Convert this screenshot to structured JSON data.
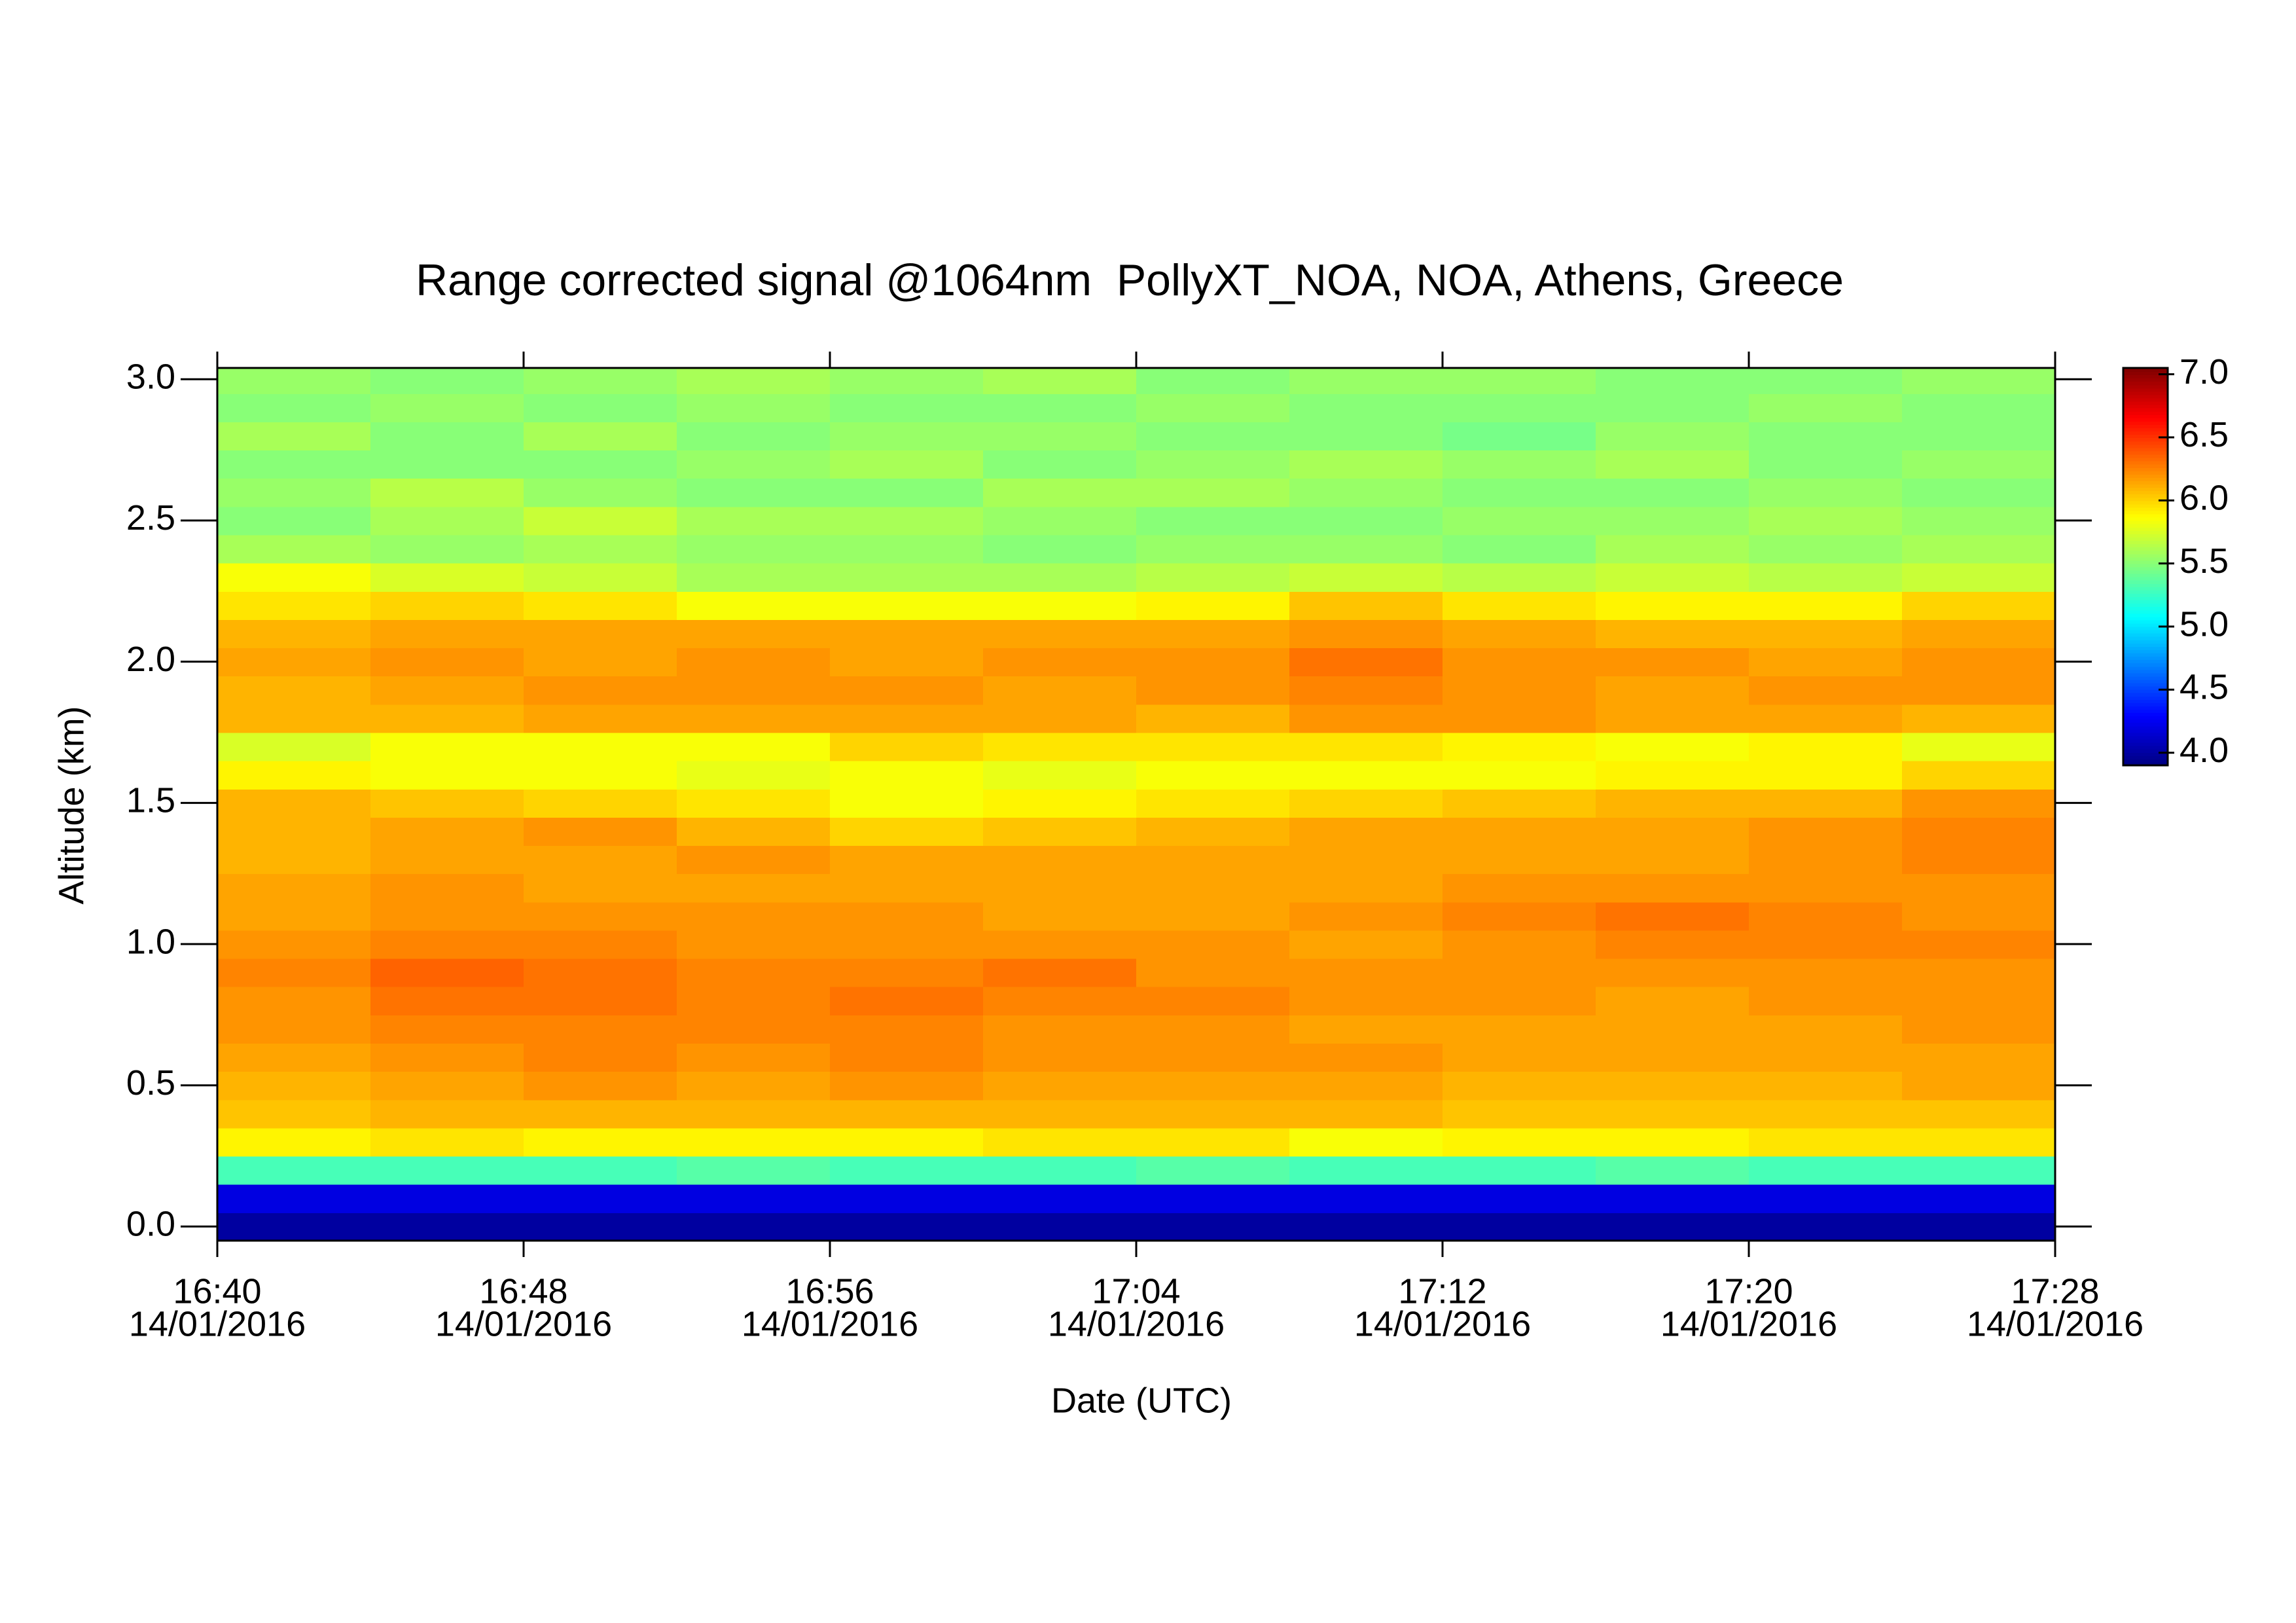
{
  "chart_data": {
    "type": "heatmap",
    "title": "Range corrected signal @1064nm  PollyXT_NOA, NOA, Athens, Greece",
    "xlabel": "Date (UTC)",
    "ylabel": "Altitude (km)",
    "xlim": [
      "16:40",
      "17:28"
    ],
    "xticks": [
      {
        "value": "16:40",
        "label": [
          "16:40",
          "14/01/2016"
        ]
      },
      {
        "value": "16:48",
        "label": [
          "16:48",
          "14/01/2016"
        ]
      },
      {
        "value": "16:56",
        "label": [
          "16:56",
          "14/01/2016"
        ]
      },
      {
        "value": "17:04",
        "label": [
          "17:04",
          "14/01/2016"
        ]
      },
      {
        "value": "17:12",
        "label": [
          "17:12",
          "14/01/2016"
        ]
      },
      {
        "value": "17:20",
        "label": [
          "17:20",
          "14/01/2016"
        ]
      },
      {
        "value": "17:28",
        "label": [
          "17:28",
          "14/01/2016"
        ]
      }
    ],
    "ylim": [
      -0.05,
      3.04
    ],
    "yticks": [
      {
        "value": 0,
        "label": "0.0"
      },
      0.5,
      {
        "value": 1,
        "label": "1.0"
      },
      1.5,
      {
        "value": 2,
        "label": "2.0"
      },
      2.5,
      {
        "value": 3,
        "label": "3.0"
      }
    ],
    "xbins": [
      "16:40",
      "16:44",
      "16:48",
      "16:52",
      "16:56",
      "17:00",
      "17:04",
      "17:08",
      "17:12",
      "17:16",
      "17:20",
      "17:24",
      "17:28"
    ],
    "ybins": [
      -0.05,
      0.05,
      0.15,
      0.25,
      0.35,
      0.45,
      0.55,
      0.65,
      0.75,
      0.85,
      0.95,
      1.05,
      1.15,
      1.25,
      1.35,
      1.45,
      1.55,
      1.65,
      1.75,
      1.85,
      1.95,
      2.05,
      2.15,
      2.25,
      2.35,
      2.45,
      2.55,
      2.65,
      2.75,
      2.85,
      2.95,
      3.05
    ],
    "values": [
      [
        4.0,
        4.2,
        5.3,
        5.9,
        6.05,
        6.1,
        6.15,
        6.2,
        6.2,
        6.25,
        6.2,
        6.15,
        6.15,
        6.1,
        6.1,
        6.1,
        5.9,
        5.75,
        6.1,
        6.1,
        6.15,
        6.1,
        5.95,
        5.85,
        5.6,
        5.5,
        5.55,
        5.5,
        5.6,
        5.5,
        5.55
      ],
      [
        4.0,
        4.2,
        5.3,
        5.95,
        6.1,
        6.15,
        6.2,
        6.25,
        6.3,
        6.35,
        6.25,
        6.2,
        6.2,
        6.15,
        6.15,
        6.05,
        5.85,
        5.85,
        6.1,
        6.15,
        6.2,
        6.15,
        6.0,
        5.75,
        5.55,
        5.6,
        5.65,
        5.5,
        5.5,
        5.55,
        5.5
      ],
      [
        4.0,
        4.2,
        5.3,
        5.9,
        6.1,
        6.2,
        6.25,
        6.25,
        6.3,
        6.3,
        6.25,
        6.2,
        6.15,
        6.15,
        6.2,
        6.0,
        5.85,
        5.85,
        6.15,
        6.2,
        6.15,
        6.15,
        5.95,
        5.7,
        5.6,
        5.7,
        5.55,
        5.5,
        5.6,
        5.5,
        5.55
      ],
      [
        4.0,
        4.2,
        5.35,
        5.9,
        6.1,
        6.15,
        6.2,
        6.25,
        6.25,
        6.25,
        6.2,
        6.2,
        6.15,
        6.2,
        6.1,
        5.95,
        5.8,
        5.85,
        6.15,
        6.2,
        6.2,
        6.15,
        5.85,
        5.6,
        5.55,
        5.6,
        5.5,
        5.55,
        5.5,
        5.55,
        5.6
      ],
      [
        4.0,
        4.2,
        5.3,
        5.9,
        6.1,
        6.2,
        6.25,
        6.25,
        6.3,
        6.25,
        6.2,
        6.2,
        6.15,
        6.15,
        6.0,
        5.85,
        5.85,
        6.0,
        6.15,
        6.2,
        6.15,
        6.15,
        5.85,
        5.6,
        5.55,
        5.6,
        5.5,
        5.6,
        5.55,
        5.5,
        5.55
      ],
      [
        4.0,
        4.2,
        5.3,
        5.95,
        6.1,
        6.15,
        6.2,
        6.2,
        6.25,
        6.3,
        6.2,
        6.15,
        6.15,
        6.15,
        6.05,
        5.9,
        5.8,
        5.95,
        6.15,
        6.15,
        6.2,
        6.15,
        5.85,
        5.6,
        5.5,
        5.55,
        5.6,
        5.5,
        5.55,
        5.5,
        5.6
      ],
      [
        4.0,
        4.2,
        5.35,
        5.95,
        6.1,
        6.15,
        6.2,
        6.2,
        6.25,
        6.2,
        6.2,
        6.15,
        6.15,
        6.15,
        6.1,
        5.95,
        5.85,
        5.95,
        6.1,
        6.2,
        6.2,
        6.15,
        5.9,
        5.65,
        5.55,
        5.5,
        5.6,
        5.55,
        5.5,
        5.55,
        5.5
      ],
      [
        4.0,
        4.2,
        5.3,
        5.85,
        6.1,
        6.15,
        6.2,
        6.15,
        6.2,
        6.2,
        6.15,
        6.2,
        6.15,
        6.15,
        6.15,
        6.0,
        5.85,
        5.95,
        6.2,
        6.25,
        6.3,
        6.2,
        6.05,
        5.7,
        5.55,
        5.5,
        5.55,
        5.6,
        5.5,
        5.5,
        5.55
      ],
      [
        4.0,
        4.2,
        5.3,
        5.9,
        6.05,
        6.1,
        6.15,
        6.15,
        6.2,
        6.2,
        6.2,
        6.25,
        6.2,
        6.15,
        6.15,
        6.05,
        5.85,
        5.9,
        6.2,
        6.2,
        6.2,
        6.15,
        5.95,
        5.65,
        5.5,
        5.55,
        5.5,
        5.55,
        5.45,
        5.5,
        5.55
      ],
      [
        4.0,
        4.2,
        5.35,
        5.9,
        6.05,
        6.1,
        6.15,
        6.15,
        6.15,
        6.2,
        6.25,
        6.3,
        6.2,
        6.15,
        6.15,
        6.1,
        5.9,
        5.85,
        6.15,
        6.15,
        6.2,
        6.1,
        5.9,
        5.7,
        5.6,
        5.55,
        5.5,
        5.6,
        5.55,
        5.5,
        5.5
      ],
      [
        4.0,
        4.2,
        5.3,
        5.95,
        6.05,
        6.1,
        6.15,
        6.15,
        6.2,
        6.2,
        6.25,
        6.25,
        6.2,
        6.2,
        6.2,
        6.1,
        5.9,
        5.9,
        6.15,
        6.2,
        6.15,
        6.1,
        5.9,
        5.65,
        5.55,
        5.6,
        5.55,
        5.5,
        5.5,
        5.55,
        5.5
      ],
      [
        4.0,
        4.2,
        5.3,
        5.95,
        6.05,
        6.15,
        6.15,
        6.2,
        6.2,
        6.2,
        6.25,
        6.2,
        6.2,
        6.25,
        6.25,
        6.2,
        6.0,
        5.8,
        6.1,
        6.2,
        6.2,
        6.15,
        6.0,
        5.7,
        5.6,
        5.55,
        5.5,
        5.55,
        5.5,
        5.5,
        5.55
      ]
    ],
    "colorbar": {
      "clim": [
        3.9,
        7.05
      ],
      "ticks": [
        {
          "value": 4,
          "label": "4.0"
        },
        4.5,
        {
          "value": 5,
          "label": "5.0"
        },
        5.5,
        {
          "value": 6,
          "label": "6.0"
        },
        6.5,
        {
          "value": 7,
          "label": "7.0"
        }
      ]
    }
  }
}
